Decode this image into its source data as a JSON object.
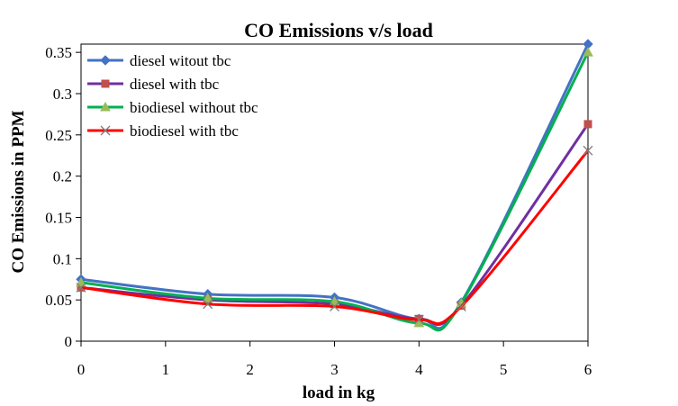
{
  "chart_data": {
    "type": "line",
    "title": "CO Emissions v/s load",
    "xlabel": "load in kg",
    "ylabel": "CO Emissions in PPM",
    "xlim": [
      0,
      6
    ],
    "ylim": [
      0,
      0.36
    ],
    "xticks": [
      0,
      1,
      2,
      3,
      4,
      5,
      6
    ],
    "xtick_labels": [
      "0",
      "1",
      "2",
      "3",
      "4",
      "5",
      "6"
    ],
    "yticks": [
      0,
      0.05,
      0.1,
      0.15,
      0.2,
      0.25,
      0.3,
      0.35
    ],
    "ytick_labels": [
      "0",
      "0.05",
      "0.1",
      "0.15",
      "0.2",
      "0.25",
      "0.3",
      "0.35"
    ],
    "grid": false,
    "legend_position": "top-left",
    "series": [
      {
        "name": "diesel witout tbc",
        "color": "#4472C4",
        "marker": "diamond",
        "x": [
          0,
          1.5,
          3,
          4,
          4.5,
          6
        ],
        "y": [
          0.075,
          0.057,
          0.053,
          0.027,
          0.047,
          0.36
        ]
      },
      {
        "name": "diesel with tbc",
        "color": "#C0504D",
        "line_color": "#7030A0",
        "marker": "square",
        "x": [
          0,
          1.5,
          3,
          4,
          4.5,
          6
        ],
        "y": [
          0.065,
          0.05,
          0.045,
          0.027,
          0.043,
          0.263
        ]
      },
      {
        "name": "biodiesel without tbc",
        "color": "#9BBB59",
        "line_color": "#00B050",
        "marker": "triangle",
        "x": [
          0,
          1.5,
          3,
          4,
          4.5,
          6
        ],
        "y": [
          0.071,
          0.052,
          0.048,
          0.022,
          0.046,
          0.35
        ]
      },
      {
        "name": "biodiesel with tbc",
        "color": "#7F7F7F",
        "line_color": "#FF0000",
        "marker": "x",
        "x": [
          0,
          1.5,
          3,
          4,
          4.5,
          6
        ],
        "y": [
          0.065,
          0.045,
          0.042,
          0.026,
          0.042,
          0.231
        ]
      }
    ]
  }
}
